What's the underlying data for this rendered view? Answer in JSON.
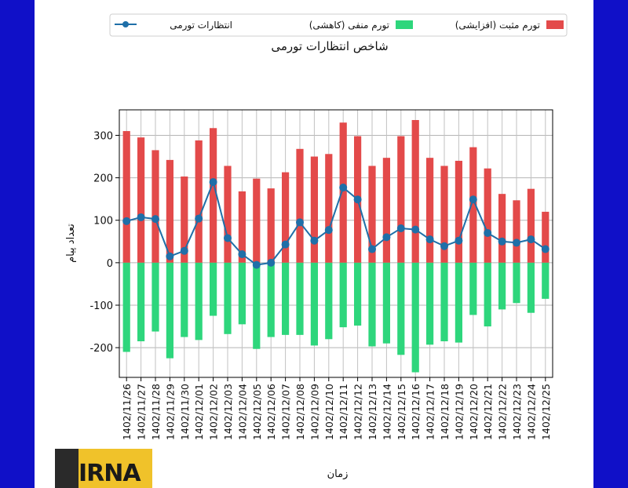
{
  "chart_data": {
    "type": "bar",
    "title": "شاخص انتظارات تورمی",
    "xlabel": "زمان",
    "ylabel": "تعداد پیام",
    "ylim": [
      -270,
      360
    ],
    "yticks": [
      -200,
      -100,
      0,
      100,
      200,
      300
    ],
    "grid": true,
    "legend_position": "top",
    "categories": [
      "1402/11/26",
      "1402/11/27",
      "1402/11/28",
      "1402/11/29",
      "1402/11/30",
      "1402/12/01",
      "1402/12/02",
      "1402/12/03",
      "1402/12/04",
      "1402/12/05",
      "1402/12/06",
      "1402/12/07",
      "1402/12/08",
      "1402/12/09",
      "1402/12/10",
      "1402/12/11",
      "1402/12/12",
      "1402/12/13",
      "1402/12/14",
      "1402/12/15",
      "1402/12/16",
      "1402/12/17",
      "1402/12/18",
      "1402/12/19",
      "1402/12/20",
      "1402/12/21",
      "1402/12/22",
      "1402/12/23",
      "1402/12/24",
      "1402/12/25"
    ],
    "series": [
      {
        "name": "تورم مثبت (افزایشی)",
        "kind": "bar",
        "color": "#e34a4a",
        "values": [
          310,
          295,
          265,
          242,
          203,
          288,
          317,
          228,
          168,
          198,
          175,
          213,
          268,
          250,
          256,
          330,
          298,
          228,
          247,
          298,
          336,
          247,
          228,
          240,
          272,
          222,
          162,
          147,
          174,
          120
        ]
      },
      {
        "name": "تورم منفی (کاهشی)",
        "kind": "bar",
        "color": "#2ed67c",
        "values": [
          -210,
          -185,
          -162,
          -225,
          -175,
          -182,
          -125,
          -168,
          -145,
          -203,
          -175,
          -170,
          -170,
          -195,
          -180,
          -152,
          -148,
          -197,
          -190,
          -217,
          -258,
          -193,
          -185,
          -188,
          -123,
          -150,
          -110,
          -95,
          -118,
          -85
        ]
      },
      {
        "name": "انتظارات تورمی",
        "kind": "line",
        "color": "#1f6fa8",
        "values": [
          98,
          107,
          103,
          15,
          28,
          104,
          190,
          58,
          20,
          -5,
          0,
          43,
          95,
          52,
          77,
          177,
          149,
          32,
          60,
          81,
          78,
          55,
          39,
          52,
          149,
          70,
          50,
          47,
          55,
          32
        ]
      }
    ]
  },
  "logo": {
    "text": "IRNA"
  }
}
